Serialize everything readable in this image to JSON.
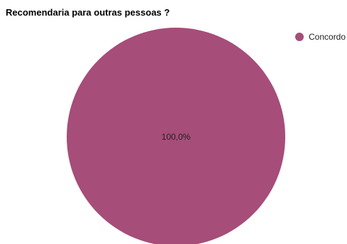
{
  "chart_data": {
    "type": "pie",
    "title": "Recomendaria para outras pessoas ?",
    "categories": [
      "Concordo"
    ],
    "values": [
      100
    ],
    "data_labels": [
      "100,0%"
    ],
    "colors": [
      "#a64d79"
    ],
    "legend_position": "top-right"
  }
}
